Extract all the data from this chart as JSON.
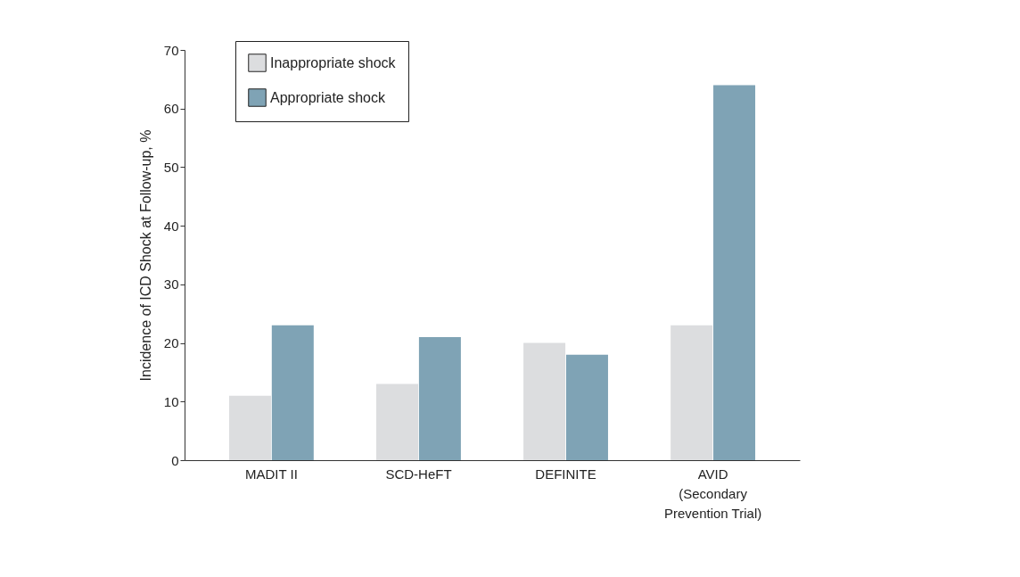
{
  "chart_data": {
    "type": "bar",
    "ylabel": "Incidence of ICD Shock at Follow-up, %",
    "categories": [
      "MADIT II",
      "SCD-HeFT",
      "DEFINITE",
      "AVID\n(Secondary\nPrevention Trial)"
    ],
    "series": [
      {
        "name": "Inappropriate shock",
        "color": "#dcdddf",
        "values": [
          11,
          13,
          20,
          23
        ]
      },
      {
        "name": "Appropriate shock",
        "color": "#7fa3b5",
        "values": [
          23,
          21,
          18,
          64
        ]
      }
    ],
    "ylim": [
      0,
      70
    ],
    "yticks": [
      0,
      10,
      20,
      30,
      40,
      50,
      60,
      70
    ],
    "grid": false,
    "legend": "top left"
  }
}
